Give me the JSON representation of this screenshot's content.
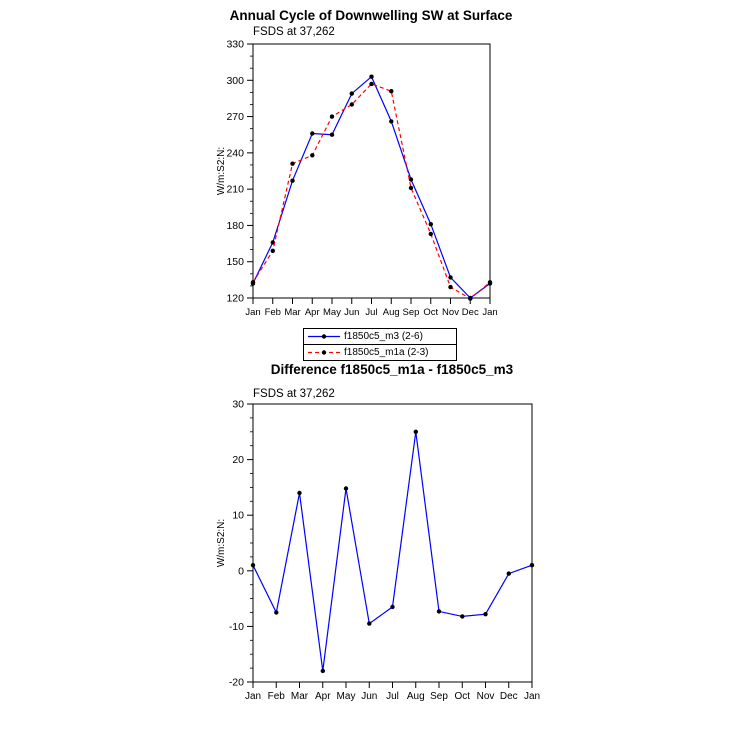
{
  "figure": {
    "background": "#ffffff",
    "axis_color": "#000000",
    "marker_color": "#000000"
  },
  "chart_data": [
    {
      "type": "line",
      "title": "Annual Cycle of Downwelling SW at Surface",
      "subtitle": "FSDS at 37,262",
      "ylabel": "W/m:S2:N:",
      "categories": [
        "Jan",
        "Feb",
        "Mar",
        "Apr",
        "May",
        "Jun",
        "Jul",
        "Aug",
        "Sep",
        "Oct",
        "Nov",
        "Dec",
        "Jan"
      ],
      "ylim": [
        120,
        330
      ],
      "ytick_step": 30,
      "ytick_minor": 10,
      "legend_position": "below-center",
      "grid": false,
      "series": [
        {
          "name": "f1850c5_m3 (2-6)",
          "color": "#0000ff",
          "line_style": "solid",
          "values": [
            132,
            166,
            217,
            256,
            255,
            289,
            303,
            266,
            218,
            181,
            137,
            120,
            132
          ]
        },
        {
          "name": "f1850c5_m1a (2-3)",
          "color": "#ff0000",
          "line_style": "dashed",
          "values": [
            133,
            159,
            231,
            238,
            270,
            280,
            297,
            291,
            211,
            173,
            129,
            119.5,
            133
          ]
        }
      ]
    },
    {
      "type": "line",
      "title": "Difference f1850c5_m1a - f1850c5_m3",
      "subtitle": "FSDS at 37,262",
      "ylabel": "W/m:S2:N:",
      "categories": [
        "Jan",
        "Feb",
        "Mar",
        "Apr",
        "May",
        "Jun",
        "Jul",
        "Aug",
        "Sep",
        "Oct",
        "Nov",
        "Dec",
        "Jan"
      ],
      "ylim": [
        -20,
        30
      ],
      "ytick_step": 10,
      "ytick_minor": 2.5,
      "grid": false,
      "series": [
        {
          "name": "difference",
          "color": "#0000ff",
          "line_style": "solid",
          "values": [
            1,
            -7.5,
            14,
            -18,
            14.8,
            -9.5,
            -6.5,
            25,
            -7.3,
            -8.2,
            -7.8,
            -0.5,
            1
          ]
        }
      ]
    }
  ]
}
